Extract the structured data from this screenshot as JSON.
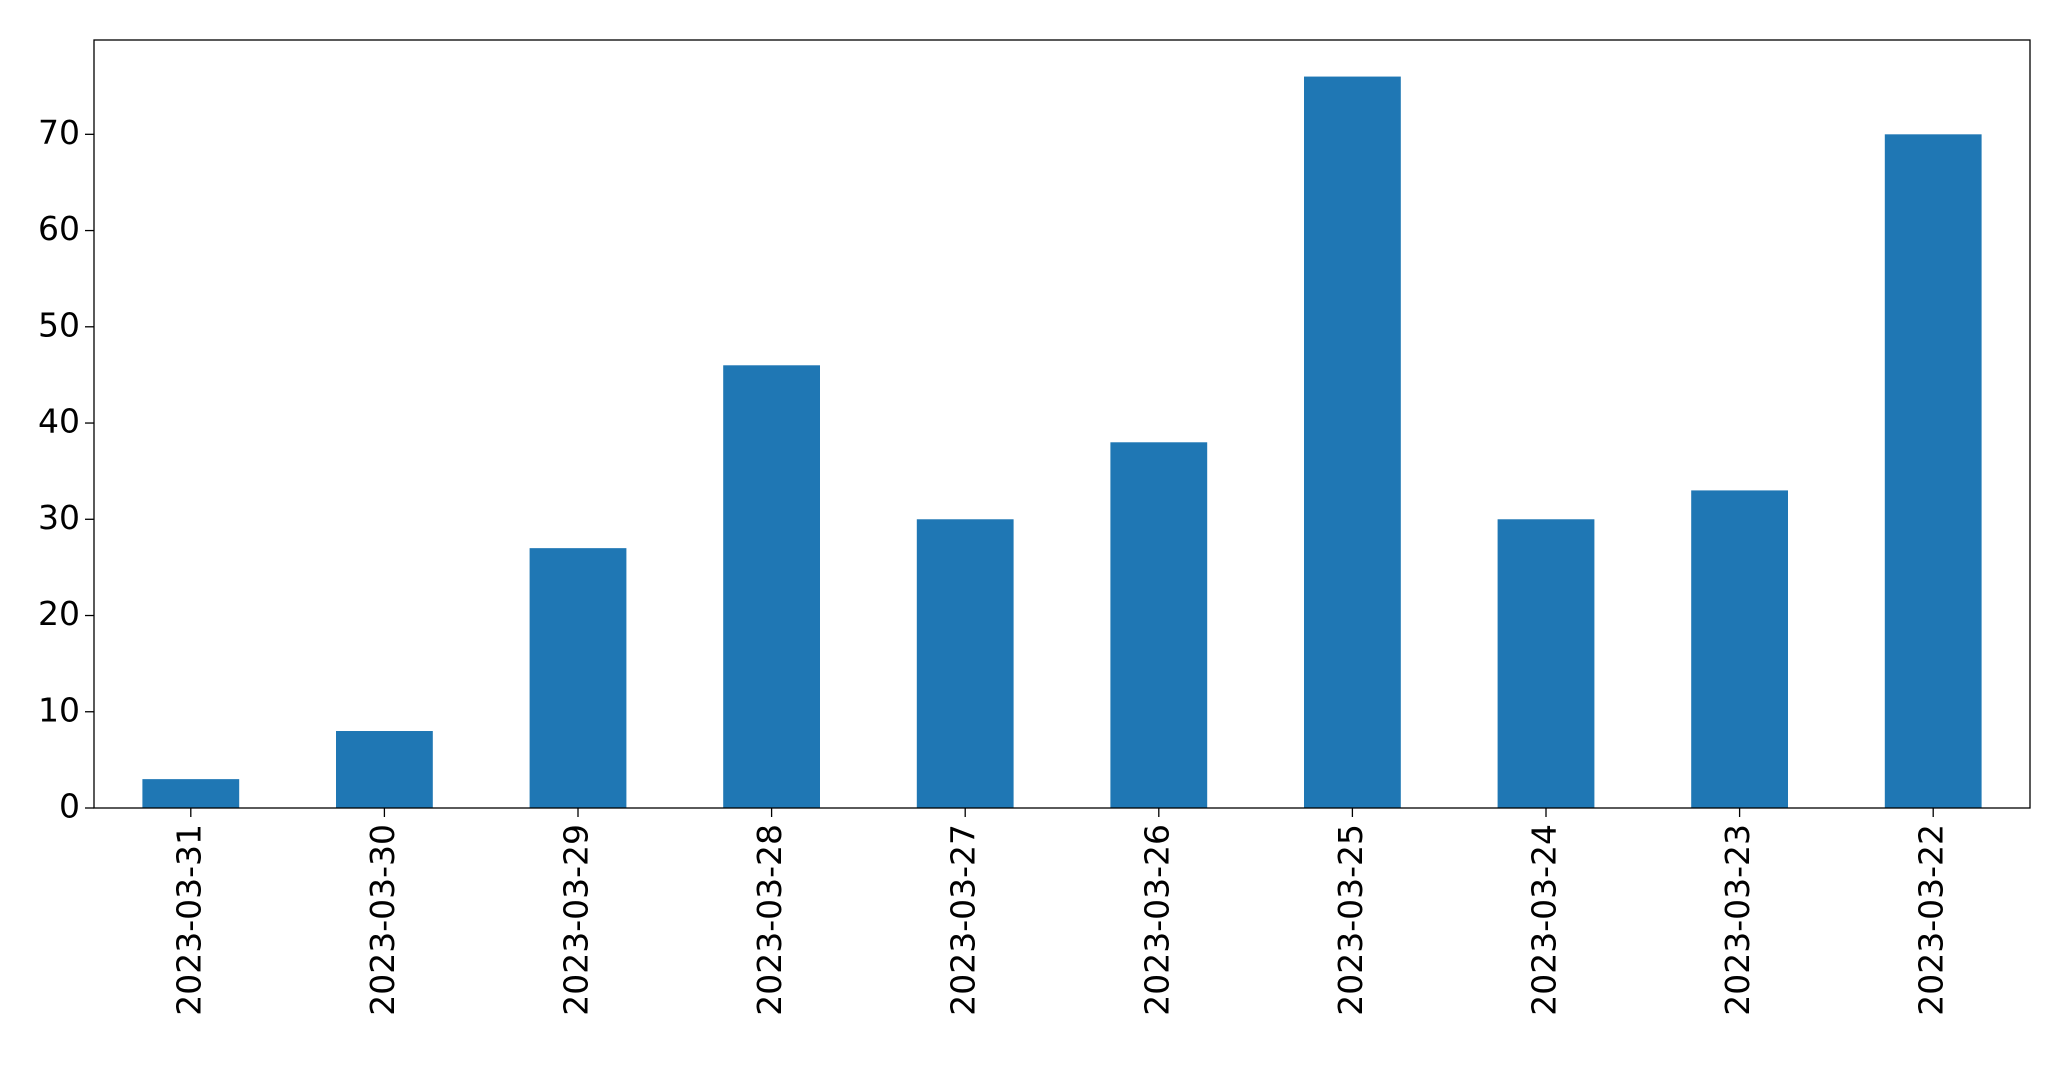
{
  "chart_data": {
    "type": "bar",
    "categories": [
      "2023-03-31",
      "2023-03-30",
      "2023-03-29",
      "2023-03-28",
      "2023-03-27",
      "2023-03-26",
      "2023-03-25",
      "2023-03-24",
      "2023-03-23",
      "2023-03-22"
    ],
    "values": [
      3,
      8,
      27,
      46,
      30,
      38,
      76,
      30,
      33,
      70
    ],
    "color": "#1f77b4",
    "ylim": [
      0,
      79.8
    ],
    "yticks": [
      0,
      10,
      20,
      30,
      40,
      50,
      60,
      70
    ],
    "grid": false
  }
}
